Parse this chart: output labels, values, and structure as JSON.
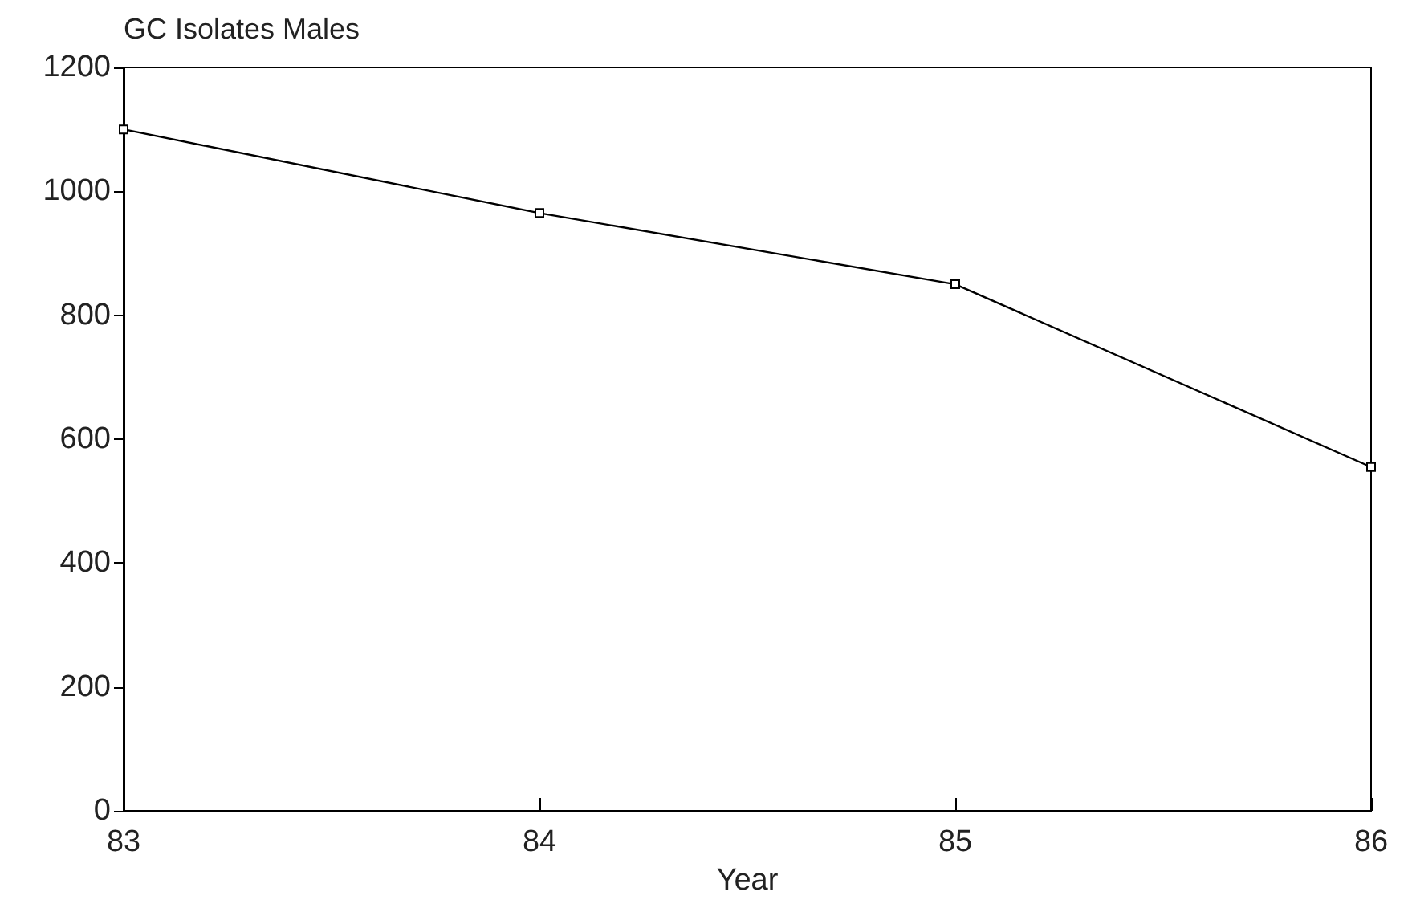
{
  "chart_data": {
    "type": "line",
    "title": "GC Isolates Males",
    "xlabel": "Year",
    "x": [
      83,
      84,
      85,
      86
    ],
    "series": [
      {
        "color": "#000000",
        "values": [
          1100,
          965,
          850,
          555
        ]
      }
    ],
    "xlim": [
      83,
      86
    ],
    "xticks": [
      83,
      84,
      85,
      86
    ],
    "ylim": [
      0,
      1200
    ],
    "yticks": [
      0,
      200,
      400,
      600,
      800,
      1000,
      1200
    ],
    "marker": "square",
    "line_style": "solid"
  }
}
